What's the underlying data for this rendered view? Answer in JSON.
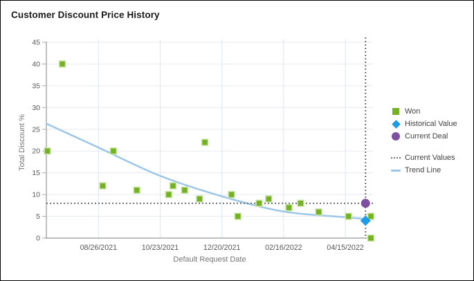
{
  "chart_data": {
    "type": "scatter",
    "title": "Customer Discount Price History",
    "xlabel": "Default Request Date",
    "ylabel": "Total Discount %",
    "ylim": [
      0,
      45
    ],
    "y_ticks": [
      0,
      5,
      10,
      15,
      20,
      25,
      30,
      35,
      40,
      45
    ],
    "x_ticks": [
      "08/26/2021",
      "10/23/2021",
      "12/20/2021",
      "02/16/2022",
      "04/15/2022"
    ],
    "x_range": [
      "07/08/2021",
      "05/11/2022"
    ],
    "grid": true,
    "legend_position": "right",
    "series": [
      {
        "name": "Won",
        "type": "scatter",
        "marker": "square",
        "color": "#75b223",
        "points": [
          {
            "date": "07/09/2021",
            "value": 20
          },
          {
            "date": "07/23/2021",
            "value": 40
          },
          {
            "date": "08/30/2021",
            "value": 12
          },
          {
            "date": "09/09/2021",
            "value": 20
          },
          {
            "date": "10/01/2021",
            "value": 11
          },
          {
            "date": "10/31/2021",
            "value": 10
          },
          {
            "date": "11/04/2021",
            "value": 12
          },
          {
            "date": "11/15/2021",
            "value": 11
          },
          {
            "date": "11/29/2021",
            "value": 9
          },
          {
            "date": "12/04/2021",
            "value": 22
          },
          {
            "date": "12/29/2021",
            "value": 10
          },
          {
            "date": "01/04/2022",
            "value": 5
          },
          {
            "date": "01/24/2022",
            "value": 8
          },
          {
            "date": "02/02/2022",
            "value": 9
          },
          {
            "date": "02/21/2022",
            "value": 7
          },
          {
            "date": "03/04/2022",
            "value": 8
          },
          {
            "date": "03/21/2022",
            "value": 6
          },
          {
            "date": "04/18/2022",
            "value": 5
          },
          {
            "date": "05/09/2022",
            "value": 5
          },
          {
            "date": "05/09/2022",
            "value": 0
          }
        ]
      },
      {
        "name": "Historical Value",
        "type": "scatter",
        "marker": "diamond",
        "color": "#1c9ce8",
        "points": [
          {
            "date": "05/04/2022",
            "value": 4
          }
        ]
      },
      {
        "name": "Current Deal",
        "type": "scatter",
        "marker": "circle",
        "color": "#7d4fa0",
        "points": [
          {
            "date": "05/04/2022",
            "value": 8
          }
        ]
      },
      {
        "name": "Current Values",
        "type": "crosshair",
        "line_style": "dotted",
        "color": "#6f6f6f",
        "h_value": 8,
        "v_date": "05/04/2022"
      },
      {
        "name": "Trend Line",
        "type": "line",
        "color": "#9cc7e8",
        "points": [
          {
            "date": "07/08/2021",
            "value": 26.3
          },
          {
            "date": "08/26/2021",
            "value": 20.8
          },
          {
            "date": "10/23/2021",
            "value": 14.3
          },
          {
            "date": "12/20/2021",
            "value": 9.6
          },
          {
            "date": "02/16/2022",
            "value": 6.1
          },
          {
            "date": "04/15/2022",
            "value": 4.8
          },
          {
            "date": "05/11/2022",
            "value": 4.3
          }
        ]
      }
    ]
  }
}
